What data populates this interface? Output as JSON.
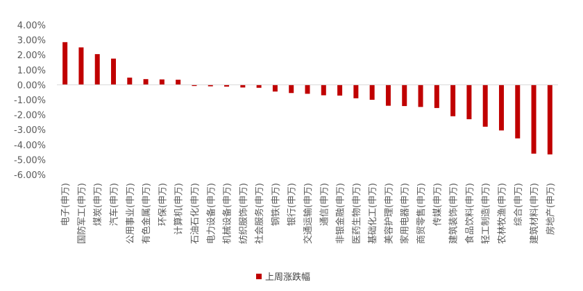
{
  "chart_data": {
    "type": "bar",
    "title": "",
    "xlabel": "",
    "ylabel": "",
    "categories": [
      "电子(申万)",
      "国防军工(申万)",
      "煤炭(申万)",
      "汽车(申万)",
      "公用事业(申万)",
      "有色金属(申万)",
      "环保(申万)",
      "计算机(申万)",
      "石油石化(申万)",
      "电力设备(申万)",
      "机械设备(申万)",
      "纺织服饰(申万)",
      "社会服务(申万)",
      "钢铁(申万)",
      "银行(申万)",
      "交通运输(申万)",
      "通信(申万)",
      "非银金融(申万)",
      "医药生物(申万)",
      "基础化工(申万)",
      "美容护理(申万)",
      "家用电器(申万)",
      "商贸零售(申万)",
      "传媒(申万)",
      "建筑装饰(申万)",
      "食品饮料(申万)",
      "轻工制造(申万)",
      "农林牧渔(申万)",
      "综合(申万)",
      "建筑材料(申万)",
      "房地产(申万)"
    ],
    "series": [
      {
        "name": "上周涨跌幅",
        "values": [
          2.85,
          2.5,
          2.05,
          1.75,
          0.48,
          0.38,
          0.36,
          0.34,
          -0.08,
          -0.1,
          -0.12,
          -0.18,
          -0.2,
          -0.45,
          -0.55,
          -0.6,
          -0.7,
          -0.72,
          -0.9,
          -1.0,
          -1.4,
          -1.42,
          -1.48,
          -1.55,
          -2.1,
          -2.3,
          -2.8,
          -3.05,
          -3.58,
          -4.6,
          -4.65
        ]
      }
    ],
    "ylim": [
      -6,
      4
    ],
    "yticks": [
      "4.00%",
      "3.00%",
      "2.00%",
      "1.00%",
      "0.00%",
      "-1.00%",
      "-2.00%",
      "-3.00%",
      "-4.00%",
      "-5.00%",
      "-6.00%"
    ],
    "grid": false,
    "legend_position": "bottom",
    "colors": {
      "bar": "#C00000",
      "axis": "#D9D9D9",
      "text": "#595959"
    }
  },
  "legend": {
    "label": "上周涨跌幅"
  }
}
